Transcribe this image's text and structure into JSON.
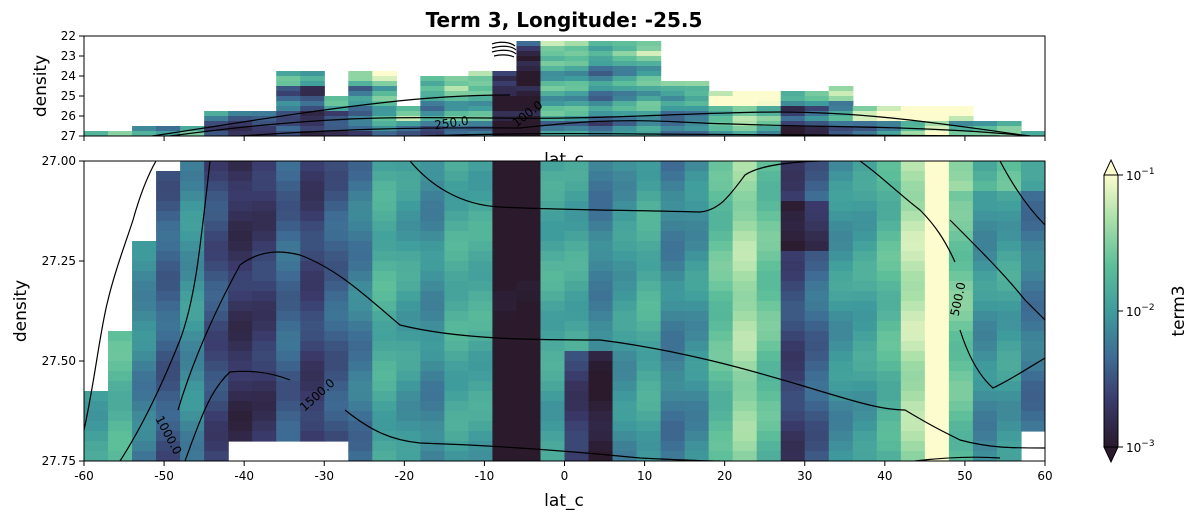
{
  "chart_data": [
    {
      "type": "heatmap",
      "panel": "top",
      "title": "Term 3, Longitude: -25.5",
      "xlabel": "lat_c",
      "ylabel": "density",
      "xlim": [
        -60,
        60
      ],
      "ylim": [
        27,
        22
      ],
      "yticks": [
        "22",
        "23",
        "24",
        "25",
        "26",
        "27"
      ],
      "contour_labels": [
        "250.0",
        "100.0"
      ]
    },
    {
      "type": "heatmap",
      "panel": "bottom",
      "xlabel": "lat_c",
      "ylabel": "density",
      "xlim": [
        -60,
        60
      ],
      "ylim": [
        27.75,
        27.0
      ],
      "xticks": [
        "-60",
        "-50",
        "-40",
        "-30",
        "-20",
        "-10",
        "0",
        "10",
        "20",
        "30",
        "40",
        "50",
        "60"
      ],
      "yticks": [
        "27.00",
        "27.25",
        "27.50",
        "27.75"
      ],
      "contour_labels": [
        "500.0",
        "1000.0",
        "1500.0"
      ],
      "colorbar": {
        "label": "term3",
        "scale": "log",
        "range": [
          0.001,
          0.1
        ],
        "ticks": [
          "10",
          "10",
          "10"
        ],
        "tick_exponents": [
          "−1",
          "−2",
          "−3"
        ],
        "colors": [
          "#2a1a2c",
          "#3a3a6a",
          "#3e6c94",
          "#3f9c9c",
          "#5ebf9a",
          "#a6dea7",
          "#fdfcce"
        ]
      }
    }
  ]
}
